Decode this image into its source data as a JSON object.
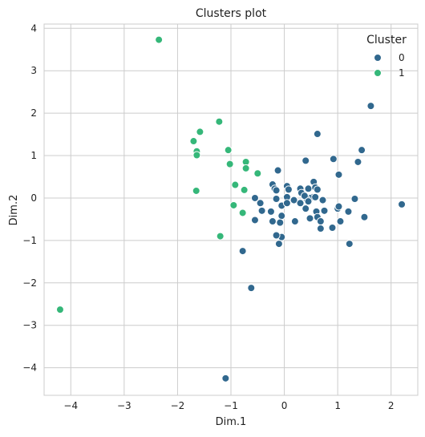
{
  "chart_data": {
    "type": "scatter",
    "title": "Clusters plot",
    "xlabel": "Dim.1",
    "ylabel": "Dim.2",
    "xlim": [
      -4.5,
      2.5
    ],
    "ylim": [
      -4.65,
      4.1
    ],
    "xticks": [
      -4,
      -3,
      -2,
      -1,
      0,
      1,
      2
    ],
    "yticks": [
      -4,
      -3,
      -2,
      -1,
      0,
      1,
      2,
      3,
      4
    ],
    "grid": true,
    "legend": {
      "title": "Cluster",
      "position": "top-right",
      "entries": [
        {
          "label": "0",
          "color": "#31688e"
        },
        {
          "label": "1",
          "color": "#35b779"
        }
      ]
    },
    "series": [
      {
        "name": "0",
        "color": "#31688e",
        "points": [
          [
            -1.1,
            -4.25
          ],
          [
            -0.62,
            -2.12
          ],
          [
            -0.78,
            -1.25
          ],
          [
            -0.1,
            -1.08
          ],
          [
            -0.05,
            -0.92
          ],
          [
            -0.15,
            -0.88
          ],
          [
            0.9,
            -0.7
          ],
          [
            0.68,
            -0.72
          ],
          [
            1.22,
            -1.08
          ],
          [
            1.05,
            -0.55
          ],
          [
            1.2,
            -0.32
          ],
          [
            1.5,
            -0.45
          ],
          [
            1.32,
            -0.02
          ],
          [
            1.0,
            -0.25
          ],
          [
            1.02,
            -0.2
          ],
          [
            2.2,
            -0.15
          ],
          [
            1.38,
            0.85
          ],
          [
            1.45,
            1.13
          ],
          [
            1.62,
            2.17
          ],
          [
            0.92,
            0.92
          ],
          [
            0.62,
            1.51
          ],
          [
            1.02,
            0.55
          ],
          [
            0.4,
            0.88
          ],
          [
            -0.12,
            0.65
          ],
          [
            0.05,
            0.28
          ],
          [
            0.08,
            0.2
          ],
          [
            -0.22,
            0.32
          ],
          [
            -0.18,
            0.22
          ],
          [
            -0.15,
            0.18
          ],
          [
            0.3,
            0.22
          ],
          [
            0.32,
            0.12
          ],
          [
            0.45,
            0.22
          ],
          [
            0.55,
            0.38
          ],
          [
            0.58,
            0.25
          ],
          [
            0.62,
            0.2
          ],
          [
            0.52,
            0.02
          ],
          [
            0.48,
            0.0
          ],
          [
            0.42,
            -0.02
          ],
          [
            0.38,
            0.05
          ],
          [
            0.45,
            -0.08
          ],
          [
            0.58,
            0.02
          ],
          [
            0.72,
            -0.05
          ],
          [
            0.05,
            0.02
          ],
          [
            -0.15,
            -0.02
          ],
          [
            -0.55,
            0.0
          ],
          [
            -0.45,
            -0.12
          ],
          [
            -0.42,
            -0.3
          ],
          [
            -0.25,
            -0.32
          ],
          [
            -0.05,
            -0.18
          ],
          [
            0.05,
            -0.12
          ],
          [
            0.18,
            -0.05
          ],
          [
            0.3,
            -0.12
          ],
          [
            0.4,
            -0.25
          ],
          [
            0.6,
            -0.32
          ],
          [
            0.75,
            -0.3
          ],
          [
            0.48,
            -0.48
          ],
          [
            0.62,
            -0.45
          ],
          [
            0.68,
            -0.55
          ],
          [
            0.2,
            -0.55
          ],
          [
            -0.22,
            -0.55
          ],
          [
            -0.55,
            -0.52
          ],
          [
            -0.05,
            -0.42
          ],
          [
            -0.08,
            -0.58
          ]
        ]
      },
      {
        "name": "1",
        "color": "#35b779",
        "points": [
          [
            -2.35,
            3.73
          ],
          [
            -1.22,
            1.8
          ],
          [
            -1.58,
            1.56
          ],
          [
            -1.7,
            1.34
          ],
          [
            -1.64,
            1.1
          ],
          [
            -1.64,
            1.01
          ],
          [
            -1.05,
            1.13
          ],
          [
            -1.02,
            0.8
          ],
          [
            -0.72,
            0.85
          ],
          [
            -0.72,
            0.7
          ],
          [
            -0.5,
            0.58
          ],
          [
            -0.92,
            0.31
          ],
          [
            -0.75,
            0.19
          ],
          [
            -1.65,
            0.17
          ],
          [
            -0.95,
            -0.17
          ],
          [
            -0.78,
            -0.35
          ],
          [
            -1.2,
            -0.9
          ],
          [
            -4.2,
            -2.63
          ]
        ]
      }
    ]
  }
}
